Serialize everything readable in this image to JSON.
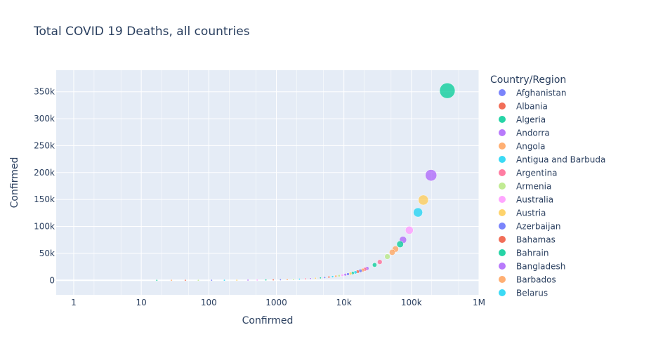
{
  "chart_data": {
    "type": "scatter",
    "title": "Total COVID 19 Deaths, all countries",
    "xlabel": "Confirmed",
    "ylabel": "Confirmed",
    "x_scale": "log",
    "xlim": [
      0.55,
      1000000
    ],
    "ylim": [
      -27000,
      390000
    ],
    "x_tick_labels": [
      "1",
      "10",
      "100",
      "1000",
      "10k",
      "100k",
      "1M"
    ],
    "x_tick_values": [
      1,
      10,
      100,
      1000,
      10000,
      100000,
      1000000
    ],
    "y_tick_labels": [
      "0",
      "50k",
      "100k",
      "150k",
      "200k",
      "250k",
      "300k",
      "350k"
    ],
    "y_tick_values": [
      0,
      50000,
      100000,
      150000,
      200000,
      250000,
      300000,
      350000
    ],
    "grid": true,
    "legend_title": "Country/Region",
    "legend_position": "right",
    "legend": [
      {
        "name": "Afghanistan",
        "color": "#636efa"
      },
      {
        "name": "Albania",
        "color": "#EF553B"
      },
      {
        "name": "Algeria",
        "color": "#00cc96"
      },
      {
        "name": "Andorra",
        "color": "#ab63fa"
      },
      {
        "name": "Angola",
        "color": "#FFA15A"
      },
      {
        "name": "Antigua and Barbuda",
        "color": "#19d3f3"
      },
      {
        "name": "Argentina",
        "color": "#FF6692"
      },
      {
        "name": "Armenia",
        "color": "#B6E880"
      },
      {
        "name": "Australia",
        "color": "#FF97FF"
      },
      {
        "name": "Austria",
        "color": "#FECB52"
      },
      {
        "name": "Azerbaijan",
        "color": "#636efa"
      },
      {
        "name": "Bahamas",
        "color": "#EF553B"
      },
      {
        "name": "Bahrain",
        "color": "#00cc96"
      },
      {
        "name": "Bangladesh",
        "color": "#ab63fa"
      },
      {
        "name": "Barbados",
        "color": "#FFA15A"
      },
      {
        "name": "Belarus",
        "color": "#19d3f3"
      }
    ],
    "points": [
      {
        "x": 340000,
        "y": 352000,
        "color": "#00cc96"
      },
      {
        "x": 195000,
        "y": 195000,
        "color": "#ab63fa"
      },
      {
        "x": 150000,
        "y": 149000,
        "color": "#FECB52"
      },
      {
        "x": 125000,
        "y": 126000,
        "color": "#19d3f3"
      },
      {
        "x": 93000,
        "y": 93000,
        "color": "#FF97FF"
      },
      {
        "x": 75000,
        "y": 75000,
        "color": "#ab63fa"
      },
      {
        "x": 68000,
        "y": 67000,
        "color": "#00cc96"
      },
      {
        "x": 58000,
        "y": 58000,
        "color": "#FFA15A"
      },
      {
        "x": 52000,
        "y": 52000,
        "color": "#FFA15A"
      },
      {
        "x": 44000,
        "y": 44000,
        "color": "#B6E880"
      },
      {
        "x": 34000,
        "y": 34000,
        "color": "#FF6692"
      },
      {
        "x": 28500,
        "y": 28500,
        "color": "#00cc96"
      },
      {
        "x": 22000,
        "y": 22000,
        "color": "#ab63fa"
      },
      {
        "x": 20500,
        "y": 20500,
        "color": "#FF6692"
      },
      {
        "x": 19000,
        "y": 19000,
        "color": "#FFA15A"
      },
      {
        "x": 17500,
        "y": 17500,
        "color": "#636efa"
      },
      {
        "x": 16000,
        "y": 16000,
        "color": "#EF553B"
      },
      {
        "x": 14800,
        "y": 14800,
        "color": "#19d3f3"
      },
      {
        "x": 13500,
        "y": 13500,
        "color": "#00cc96"
      },
      {
        "x": 12500,
        "y": 12500,
        "color": "#FECB52"
      },
      {
        "x": 11500,
        "y": 11500,
        "color": "#636efa"
      },
      {
        "x": 10500,
        "y": 10500,
        "color": "#ab63fa"
      },
      {
        "x": 9500,
        "y": 9500,
        "color": "#FF97FF"
      },
      {
        "x": 8500,
        "y": 8500,
        "color": "#B6E880"
      },
      {
        "x": 7600,
        "y": 7600,
        "color": "#FFA15A"
      },
      {
        "x": 6800,
        "y": 6800,
        "color": "#19d3f3"
      },
      {
        "x": 6000,
        "y": 6000,
        "color": "#EF553B"
      },
      {
        "x": 5200,
        "y": 5200,
        "color": "#636efa"
      },
      {
        "x": 4500,
        "y": 4500,
        "color": "#00cc96"
      },
      {
        "x": 3800,
        "y": 3800,
        "color": "#FECB52"
      },
      {
        "x": 3200,
        "y": 3200,
        "color": "#ab63fa"
      },
      {
        "x": 2700,
        "y": 2700,
        "color": "#FF6692"
      },
      {
        "x": 2200,
        "y": 2200,
        "color": "#19d3f3"
      },
      {
        "x": 1800,
        "y": 1800,
        "color": "#B6E880"
      },
      {
        "x": 1450,
        "y": 1450,
        "color": "#FFA15A"
      },
      {
        "x": 1150,
        "y": 1150,
        "color": "#636efa"
      },
      {
        "x": 900,
        "y": 900,
        "color": "#EF553B"
      },
      {
        "x": 700,
        "y": 700,
        "color": "#00cc96"
      },
      {
        "x": 520,
        "y": 520,
        "color": "#FF97FF"
      },
      {
        "x": 380,
        "y": 380,
        "color": "#ab63fa"
      },
      {
        "x": 260,
        "y": 260,
        "color": "#FECB52"
      },
      {
        "x": 170,
        "y": 170,
        "color": "#19d3f3"
      },
      {
        "x": 110,
        "y": 110,
        "color": "#636efa"
      },
      {
        "x": 70,
        "y": 70,
        "color": "#B6E880"
      },
      {
        "x": 45,
        "y": 45,
        "color": "#EF553B"
      },
      {
        "x": 28,
        "y": 28,
        "color": "#FFA15A"
      },
      {
        "x": 17,
        "y": 17,
        "color": "#00cc96"
      }
    ]
  }
}
